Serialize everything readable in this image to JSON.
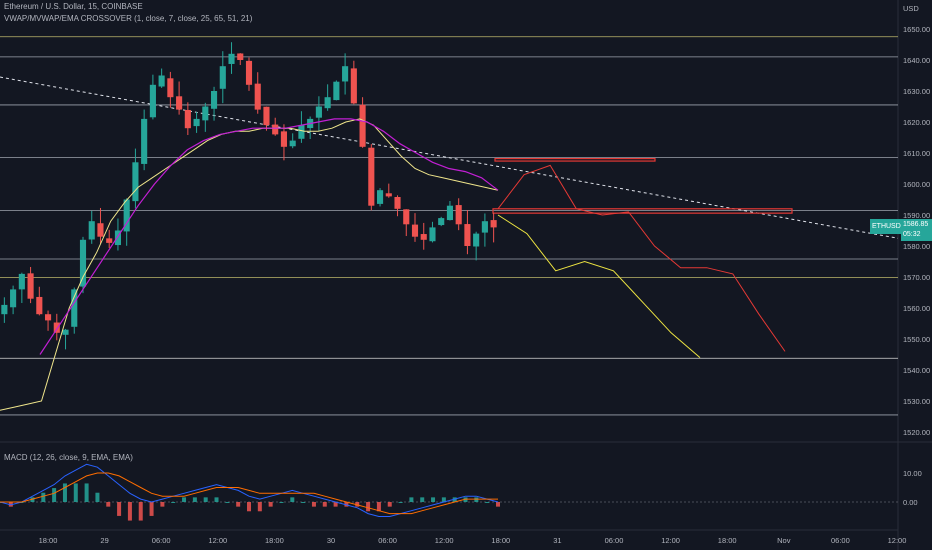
{
  "header": {
    "title": "Ethereum / U.S. Dollar, 15, COINBASE",
    "indicator": "VWAP/MVWAP/EMA CROSSOVER (1, close, 7, close, 25, 65, 51, 21)",
    "macd_label": "MACD (12, 26, close, 9, EMA, EMA)"
  },
  "price_badge": {
    "symbol": "ETHUSD",
    "price": "1586.85",
    "countdown": "05:32"
  },
  "colors": {
    "background": "#131722",
    "up": "#26a69a",
    "down": "#ef5350",
    "vwap": "#f0e68c",
    "ema": "#c21fd4",
    "forecast_red": "#e53935",
    "forecast_yellow": "#ede442",
    "level_line": "#d8d8d8",
    "macd_line": "#2962ff",
    "signal_line": "#ff6d00"
  },
  "chart_data": {
    "type": "candlestick",
    "price_axis": {
      "currency": "USD",
      "ticks": [
        "1650.00",
        "1640.00",
        "1630.00",
        "1620.00",
        "1610.00",
        "1600.00",
        "1590.00",
        "1580.00",
        "1570.00",
        "1560.00",
        "1550.00",
        "1540.00",
        "1530.00",
        "1520.00"
      ],
      "range": [
        1518,
        1662
      ]
    },
    "time_axis": {
      "ticks": [
        "18:00",
        "29",
        "06:00",
        "12:00",
        "18:00",
        "30",
        "06:00",
        "12:00",
        "18:00",
        "31",
        "06:00",
        "12:00",
        "18:00",
        "Nov",
        "06:00",
        "12:00"
      ]
    },
    "horizontal_levels": [
      1647.5,
      1641,
      1625.5,
      1608.5,
      1591.5,
      1575.8,
      1569.8,
      1543.8,
      1525.5
    ],
    "trendline": {
      "style": "dashed",
      "from": 1634.5,
      "to": 1582.5
    },
    "resistance_boxes": [
      {
        "price_top": 1608.2,
        "price_bottom": 1607.4
      },
      {
        "price_top": 1592.0,
        "price_bottom": 1590.6
      }
    ],
    "close_prices": [
      1561,
      1566,
      1571,
      1563,
      1558,
      1556,
      1552,
      1553,
      1566,
      1582,
      1588,
      1583,
      1581,
      1585,
      1595,
      1607,
      1621,
      1632,
      1635,
      1628,
      1624,
      1618,
      1621,
      1625,
      1630,
      1638,
      1642,
      1640,
      1632,
      1624,
      1619,
      1616,
      1612,
      1614,
      1619,
      1621,
      1625,
      1628,
      1633,
      1638,
      1626,
      1612,
      1593,
      1598,
      1596,
      1592,
      1587,
      1583,
      1582,
      1586,
      1589,
      1593,
      1587,
      1580,
      1584,
      1588,
      1586
    ],
    "vwap": [
      1527,
      1528,
      1529,
      1530,
      1545,
      1560,
      1570,
      1578,
      1588,
      1594,
      1599,
      1602,
      1605,
      1608,
      1611,
      1614,
      1616,
      1617,
      1617,
      1618,
      1618,
      1618,
      1617,
      1617,
      1618,
      1620,
      1621,
      1619,
      1614,
      1609,
      1605,
      1603,
      1602,
      1601,
      1600,
      1599,
      1598
    ],
    "ema": [
      1545,
      1553,
      1561,
      1569,
      1577,
      1585,
      1593,
      1600,
      1606,
      1611,
      1614,
      1616,
      1617,
      1618,
      1618,
      1618,
      1619,
      1620,
      1621,
      1621,
      1620,
      1617,
      1613,
      1610,
      1607,
      1605,
      1604,
      1602,
      1598
    ],
    "forecast_red": [
      1592,
      1603,
      1606,
      1592,
      1590,
      1591,
      1580,
      1573,
      1573,
      1571,
      1558,
      1546
    ],
    "forecast_yellow": [
      1590,
      1584,
      1572,
      1575,
      1572,
      1562,
      1552,
      1544
    ],
    "macd": {
      "axis_ticks": [
        "10.00",
        "0.00"
      ],
      "macd_line": [
        0,
        -1,
        0,
        2,
        4,
        6,
        9,
        11,
        13,
        12,
        9,
        6,
        3,
        1,
        0,
        1,
        2,
        3,
        4,
        5,
        6,
        5,
        4,
        2,
        1,
        2,
        3,
        4,
        3,
        2,
        1,
        0,
        -1,
        -2,
        -4,
        -5,
        -5,
        -4,
        -3,
        -2,
        -1,
        0,
        1,
        2,
        2,
        1,
        0
      ],
      "signal_line": [
        0,
        0,
        0,
        1,
        2,
        3,
        5,
        7,
        9,
        10,
        10,
        9,
        7,
        5,
        3,
        2,
        2,
        2,
        3,
        4,
        5,
        5,
        5,
        4,
        3,
        3,
        3,
        3,
        3,
        3,
        2,
        1,
        0,
        -1,
        -2,
        -3,
        -4,
        -4,
        -4,
        -3,
        -2,
        -1,
        0,
        1,
        1,
        1,
        1
      ]
    }
  }
}
